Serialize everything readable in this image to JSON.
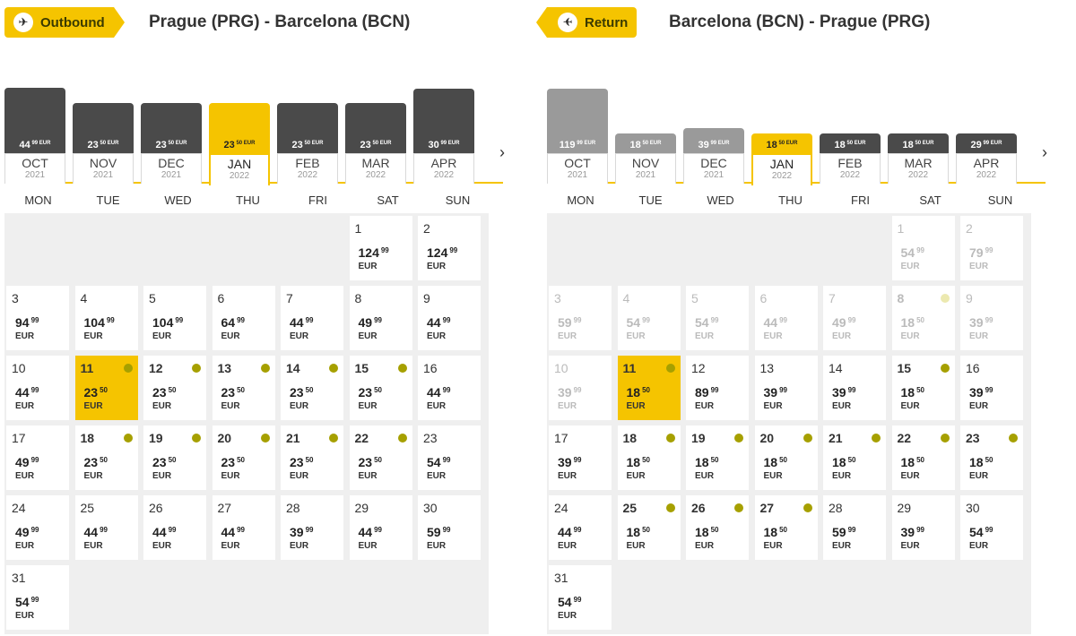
{
  "colors": {
    "accent": "#f5c400",
    "bar_dark": "#4a4a4a",
    "bar_gray": "#9a9a9a",
    "dot": "#a6a000"
  },
  "weekdays": [
    "MON",
    "TUE",
    "WED",
    "THU",
    "FRI",
    "SAT",
    "SUN"
  ],
  "next_icon": "chevron-right-icon",
  "outbound": {
    "tag_label": "Outbound",
    "tag_icon": "plane-icon",
    "route": "Prague (PRG) - Barcelona (BCN)",
    "months": [
      {
        "name": "OCT",
        "year": "2021",
        "price": "44",
        "cents": "99 EUR",
        "level": 0.73,
        "tone": "dark"
      },
      {
        "name": "NOV",
        "year": "2021",
        "price": "23",
        "cents": "50 EUR",
        "level": 0.56,
        "tone": "dark"
      },
      {
        "name": "DEC",
        "year": "2021",
        "price": "23",
        "cents": "50 EUR",
        "level": 0.56,
        "tone": "dark"
      },
      {
        "name": "JAN",
        "year": "2022",
        "price": "23",
        "cents": "50 EUR",
        "level": 0.56,
        "tone": "accent",
        "selected": true
      },
      {
        "name": "FEB",
        "year": "2022",
        "price": "23",
        "cents": "50 EUR",
        "level": 0.56,
        "tone": "dark"
      },
      {
        "name": "MAR",
        "year": "2022",
        "price": "23",
        "cents": "50 EUR",
        "level": 0.56,
        "tone": "dark"
      },
      {
        "name": "APR",
        "year": "2022",
        "price": "30",
        "cents": "99 EUR",
        "level": 0.72,
        "tone": "dark"
      }
    ],
    "first_col": 5,
    "days": [
      {
        "d": "1",
        "p": "124",
        "c": "99",
        "cur": "EUR"
      },
      {
        "d": "2",
        "p": "124",
        "c": "99",
        "cur": "EUR"
      },
      {
        "d": "3",
        "p": "94",
        "c": "99",
        "cur": "EUR"
      },
      {
        "d": "4",
        "p": "104",
        "c": "99",
        "cur": "EUR"
      },
      {
        "d": "5",
        "p": "104",
        "c": "99",
        "cur": "EUR"
      },
      {
        "d": "6",
        "p": "64",
        "c": "99",
        "cur": "EUR"
      },
      {
        "d": "7",
        "p": "44",
        "c": "99",
        "cur": "EUR"
      },
      {
        "d": "8",
        "p": "49",
        "c": "99",
        "cur": "EUR"
      },
      {
        "d": "9",
        "p": "44",
        "c": "99",
        "cur": "EUR"
      },
      {
        "d": "10",
        "p": "44",
        "c": "99",
        "cur": "EUR"
      },
      {
        "d": "11",
        "p": "23",
        "c": "50",
        "cur": "EUR",
        "dot": true,
        "selected": true
      },
      {
        "d": "12",
        "p": "23",
        "c": "50",
        "cur": "EUR",
        "dot": true
      },
      {
        "d": "13",
        "p": "23",
        "c": "50",
        "cur": "EUR",
        "dot": true
      },
      {
        "d": "14",
        "p": "23",
        "c": "50",
        "cur": "EUR",
        "dot": true
      },
      {
        "d": "15",
        "p": "23",
        "c": "50",
        "cur": "EUR",
        "dot": true
      },
      {
        "d": "16",
        "p": "44",
        "c": "99",
        "cur": "EUR"
      },
      {
        "d": "17",
        "p": "49",
        "c": "99",
        "cur": "EUR"
      },
      {
        "d": "18",
        "p": "23",
        "c": "50",
        "cur": "EUR",
        "dot": true
      },
      {
        "d": "19",
        "p": "23",
        "c": "50",
        "cur": "EUR",
        "dot": true
      },
      {
        "d": "20",
        "p": "23",
        "c": "50",
        "cur": "EUR",
        "dot": true
      },
      {
        "d": "21",
        "p": "23",
        "c": "50",
        "cur": "EUR",
        "dot": true
      },
      {
        "d": "22",
        "p": "23",
        "c": "50",
        "cur": "EUR",
        "dot": true
      },
      {
        "d": "23",
        "p": "54",
        "c": "99",
        "cur": "EUR"
      },
      {
        "d": "24",
        "p": "49",
        "c": "99",
        "cur": "EUR"
      },
      {
        "d": "25",
        "p": "44",
        "c": "99",
        "cur": "EUR"
      },
      {
        "d": "26",
        "p": "44",
        "c": "99",
        "cur": "EUR"
      },
      {
        "d": "27",
        "p": "44",
        "c": "99",
        "cur": "EUR"
      },
      {
        "d": "28",
        "p": "39",
        "c": "99",
        "cur": "EUR"
      },
      {
        "d": "29",
        "p": "44",
        "c": "99",
        "cur": "EUR"
      },
      {
        "d": "30",
        "p": "59",
        "c": "99",
        "cur": "EUR"
      },
      {
        "d": "31",
        "p": "54",
        "c": "99",
        "cur": "EUR"
      }
    ]
  },
  "return": {
    "tag_label": "Return",
    "tag_icon": "plane-icon",
    "route": "Barcelona (BCN) - Prague (PRG)",
    "months": [
      {
        "name": "OCT",
        "year": "2021",
        "price": "119",
        "cents": "99 EUR",
        "level": 0.72,
        "tone": "gray"
      },
      {
        "name": "NOV",
        "year": "2021",
        "price": "18",
        "cents": "50 EUR",
        "level": 0.22,
        "tone": "gray"
      },
      {
        "name": "DEC",
        "year": "2021",
        "price": "39",
        "cents": "99 EUR",
        "level": 0.28,
        "tone": "gray"
      },
      {
        "name": "JAN",
        "year": "2022",
        "price": "18",
        "cents": "50 EUR",
        "level": 0.22,
        "tone": "accent",
        "selected": true
      },
      {
        "name": "FEB",
        "year": "2022",
        "price": "18",
        "cents": "50 EUR",
        "level": 0.22,
        "tone": "dark"
      },
      {
        "name": "MAR",
        "year": "2022",
        "price": "18",
        "cents": "50 EUR",
        "level": 0.22,
        "tone": "dark"
      },
      {
        "name": "APR",
        "year": "2022",
        "price": "29",
        "cents": "99 EUR",
        "level": 0.22,
        "tone": "dark"
      }
    ],
    "first_col": 5,
    "days": [
      {
        "d": "1",
        "p": "54",
        "c": "99",
        "cur": "EUR",
        "dim": true
      },
      {
        "d": "2",
        "p": "79",
        "c": "99",
        "cur": "EUR",
        "dim": true
      },
      {
        "d": "3",
        "p": "59",
        "c": "99",
        "cur": "EUR",
        "dim": true
      },
      {
        "d": "4",
        "p": "54",
        "c": "99",
        "cur": "EUR",
        "dim": true
      },
      {
        "d": "5",
        "p": "54",
        "c": "99",
        "cur": "EUR",
        "dim": true
      },
      {
        "d": "6",
        "p": "44",
        "c": "99",
        "cur": "EUR",
        "dim": true
      },
      {
        "d": "7",
        "p": "49",
        "c": "99",
        "cur": "EUR",
        "dim": true
      },
      {
        "d": "8",
        "p": "18",
        "c": "50",
        "cur": "EUR",
        "dim": true,
        "dot": true
      },
      {
        "d": "9",
        "p": "39",
        "c": "99",
        "cur": "EUR",
        "dim": true
      },
      {
        "d": "10",
        "p": "39",
        "c": "99",
        "cur": "EUR",
        "dim": true
      },
      {
        "d": "11",
        "p": "18",
        "c": "50",
        "cur": "EUR",
        "dot": true,
        "selected": true
      },
      {
        "d": "12",
        "p": "89",
        "c": "99",
        "cur": "EUR"
      },
      {
        "d": "13",
        "p": "39",
        "c": "99",
        "cur": "EUR"
      },
      {
        "d": "14",
        "p": "39",
        "c": "99",
        "cur": "EUR"
      },
      {
        "d": "15",
        "p": "18",
        "c": "50",
        "cur": "EUR",
        "dot": true
      },
      {
        "d": "16",
        "p": "39",
        "c": "99",
        "cur": "EUR"
      },
      {
        "d": "17",
        "p": "39",
        "c": "99",
        "cur": "EUR"
      },
      {
        "d": "18",
        "p": "18",
        "c": "50",
        "cur": "EUR",
        "dot": true
      },
      {
        "d": "19",
        "p": "18",
        "c": "50",
        "cur": "EUR",
        "dot": true
      },
      {
        "d": "20",
        "p": "18",
        "c": "50",
        "cur": "EUR",
        "dot": true
      },
      {
        "d": "21",
        "p": "18",
        "c": "50",
        "cur": "EUR",
        "dot": true
      },
      {
        "d": "22",
        "p": "18",
        "c": "50",
        "cur": "EUR",
        "dot": true
      },
      {
        "d": "23",
        "p": "18",
        "c": "50",
        "cur": "EUR",
        "dot": true
      },
      {
        "d": "24",
        "p": "44",
        "c": "99",
        "cur": "EUR"
      },
      {
        "d": "25",
        "p": "18",
        "c": "50",
        "cur": "EUR",
        "dot": true
      },
      {
        "d": "26",
        "p": "18",
        "c": "50",
        "cur": "EUR",
        "dot": true
      },
      {
        "d": "27",
        "p": "18",
        "c": "50",
        "cur": "EUR",
        "dot": true
      },
      {
        "d": "28",
        "p": "59",
        "c": "99",
        "cur": "EUR"
      },
      {
        "d": "29",
        "p": "39",
        "c": "99",
        "cur": "EUR"
      },
      {
        "d": "30",
        "p": "54",
        "c": "99",
        "cur": "EUR"
      },
      {
        "d": "31",
        "p": "54",
        "c": "99",
        "cur": "EUR"
      }
    ]
  }
}
